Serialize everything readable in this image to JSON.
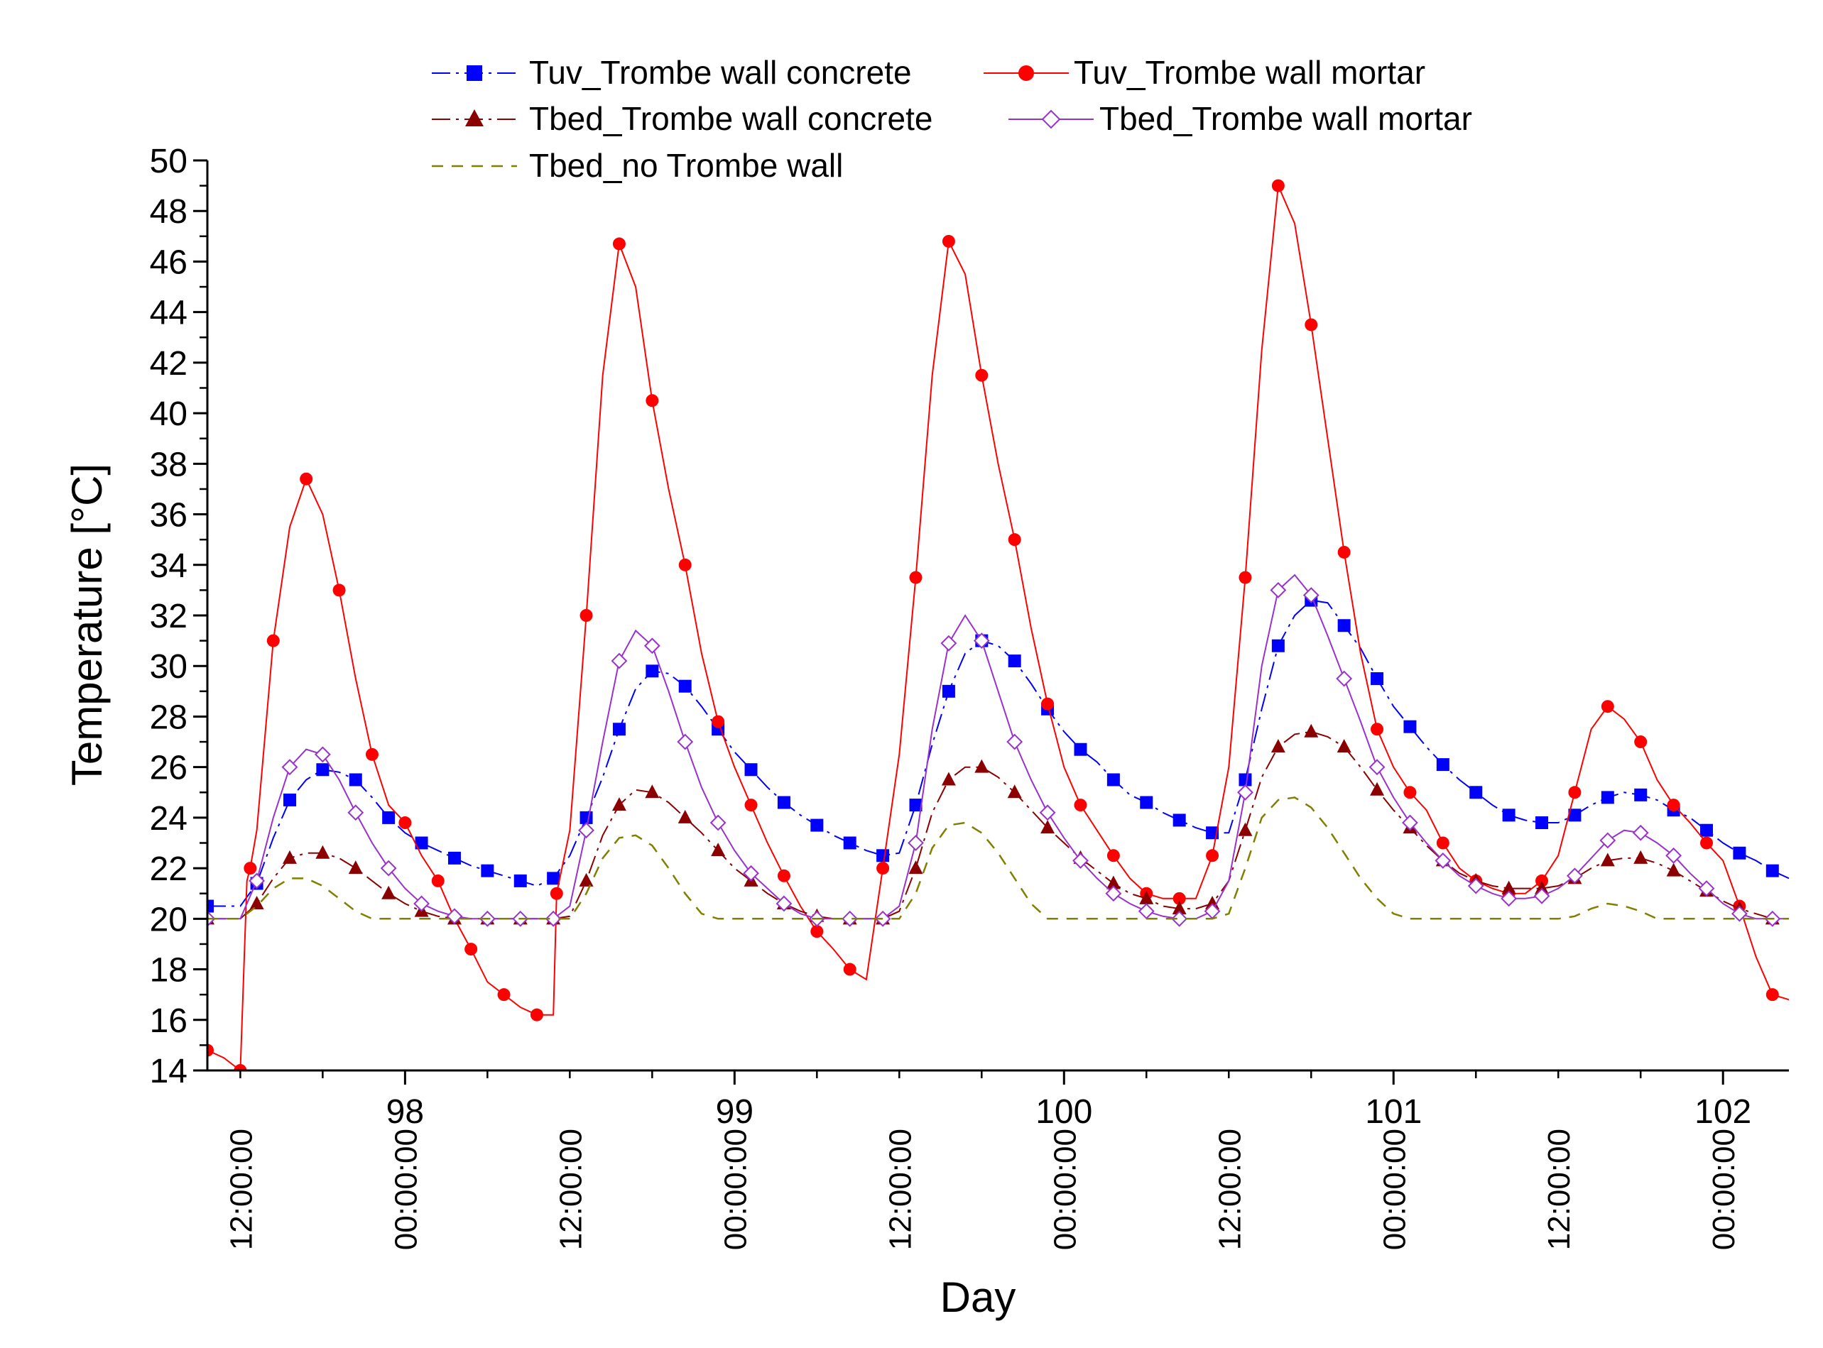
{
  "chart_data": {
    "type": "line",
    "title": "",
    "xlabel": "Day",
    "ylabel": "Temperature [°C]",
    "xlim": [
      97.4,
      102.2
    ],
    "ylim": [
      14,
      50
    ],
    "y_ticks": [
      14,
      16,
      18,
      20,
      22,
      24,
      26,
      28,
      30,
      32,
      34,
      36,
      38,
      40,
      42,
      44,
      46,
      48,
      50
    ],
    "x_day_ticks": [
      98,
      99,
      100,
      101,
      102
    ],
    "x_time_ticks": [
      {
        "x": 97.5,
        "label": "12:00:00"
      },
      {
        "x": 98.0,
        "label": "00:00:00"
      },
      {
        "x": 98.5,
        "label": "12:00:00"
      },
      {
        "x": 99.0,
        "label": "00:00:00"
      },
      {
        "x": 99.5,
        "label": "12:00:00"
      },
      {
        "x": 100.0,
        "label": "00:00:00"
      },
      {
        "x": 100.5,
        "label": "12:00:00"
      },
      {
        "x": 101.0,
        "label": "00:00:00"
      },
      {
        "x": 101.5,
        "label": "12:00:00"
      },
      {
        "x": 102.0,
        "label": "00:00:00"
      }
    ],
    "legend_position": "top",
    "series": [
      {
        "name": "Tuv_Trombe wall concrete",
        "color": "#0000ff",
        "line": "dash-dot",
        "marker": "square",
        "x": [
          97.4,
          97.5,
          97.55,
          97.6,
          97.65,
          97.7,
          97.75,
          97.8,
          97.85,
          97.9,
          97.95,
          98.0,
          98.05,
          98.1,
          98.15,
          98.2,
          98.25,
          98.3,
          98.35,
          98.4,
          98.45,
          98.5,
          98.55,
          98.6,
          98.65,
          98.7,
          98.75,
          98.8,
          98.85,
          98.9,
          98.95,
          99.0,
          99.05,
          99.1,
          99.15,
          99.2,
          99.25,
          99.3,
          99.35,
          99.4,
          99.45,
          99.5,
          99.55,
          99.6,
          99.65,
          99.7,
          99.75,
          99.8,
          99.85,
          99.9,
          99.95,
          100.0,
          100.05,
          100.1,
          100.15,
          100.2,
          100.25,
          100.3,
          100.35,
          100.4,
          100.45,
          100.5,
          100.55,
          100.6,
          100.65,
          100.7,
          100.75,
          100.8,
          100.85,
          100.9,
          100.95,
          101.0,
          101.05,
          101.1,
          101.15,
          101.2,
          101.25,
          101.3,
          101.35,
          101.4,
          101.45,
          101.5,
          101.55,
          101.6,
          101.65,
          101.7,
          101.75,
          101.8,
          101.85,
          101.9,
          101.95,
          102.0,
          102.05,
          102.1,
          102.15,
          102.2
        ],
        "y": [
          20.5,
          20.5,
          21.4,
          23.2,
          24.7,
          25.5,
          25.9,
          25.8,
          25.5,
          24.8,
          24.0,
          23.4,
          23.0,
          22.7,
          22.4,
          22.1,
          21.9,
          21.7,
          21.5,
          21.3,
          21.6,
          22.5,
          24.0,
          25.6,
          27.5,
          29.1,
          29.8,
          29.7,
          29.2,
          28.4,
          27.5,
          26.6,
          25.9,
          25.2,
          24.6,
          24.1,
          23.7,
          23.3,
          23.0,
          22.7,
          22.5,
          22.6,
          24.5,
          26.9,
          29.0,
          30.5,
          31.0,
          30.8,
          30.2,
          29.3,
          28.3,
          27.4,
          26.7,
          26.2,
          25.5,
          24.9,
          24.6,
          24.2,
          23.9,
          23.6,
          23.4,
          23.4,
          25.5,
          28.3,
          30.8,
          32.0,
          32.6,
          32.5,
          31.6,
          30.7,
          29.5,
          28.4,
          27.6,
          26.8,
          26.1,
          25.5,
          25.0,
          24.5,
          24.1,
          23.9,
          23.8,
          23.8,
          24.1,
          24.5,
          24.8,
          25.0,
          24.9,
          24.7,
          24.3,
          24.0,
          23.5,
          23.0,
          22.6,
          22.3,
          21.9,
          21.6
        ]
      },
      {
        "name": "Tuv_Trombe wall mortar",
        "color": "#ff0000",
        "line": "solid",
        "marker": "circle",
        "x": [
          97.4,
          97.45,
          97.5,
          97.52,
          97.53,
          97.55,
          97.6,
          97.65,
          97.7,
          97.75,
          97.8,
          97.85,
          97.9,
          97.95,
          98.0,
          98.05,
          98.1,
          98.15,
          98.2,
          98.25,
          98.3,
          98.35,
          98.4,
          98.45,
          98.46,
          98.5,
          98.55,
          98.6,
          98.65,
          98.7,
          98.75,
          98.8,
          98.85,
          98.9,
          98.95,
          99.0,
          99.05,
          99.1,
          99.15,
          99.2,
          99.25,
          99.3,
          99.35,
          99.4,
          99.45,
          99.5,
          99.55,
          99.6,
          99.65,
          99.7,
          99.75,
          99.8,
          99.85,
          99.9,
          99.95,
          100.0,
          100.05,
          100.1,
          100.15,
          100.2,
          100.25,
          100.3,
          100.35,
          100.4,
          100.45,
          100.5,
          100.55,
          100.6,
          100.65,
          100.7,
          100.75,
          100.8,
          100.85,
          100.9,
          100.95,
          101.0,
          101.05,
          101.1,
          101.15,
          101.2,
          101.25,
          101.3,
          101.35,
          101.4,
          101.45,
          101.5,
          101.55,
          101.6,
          101.65,
          101.7,
          101.75,
          101.8,
          101.85,
          101.9,
          101.95,
          102.0,
          102.05,
          102.1,
          102.15,
          102.2
        ],
        "y": [
          14.8,
          14.5,
          14.0,
          21.5,
          22.0,
          23.5,
          31.0,
          35.5,
          37.4,
          36.0,
          33.0,
          29.5,
          26.5,
          24.5,
          23.8,
          22.5,
          21.5,
          20.0,
          18.8,
          17.5,
          17.0,
          16.5,
          16.2,
          16.2,
          21.0,
          23.5,
          32.0,
          41.5,
          46.7,
          45.0,
          40.5,
          37.0,
          34.0,
          30.5,
          27.8,
          26.0,
          24.5,
          23.0,
          21.7,
          20.5,
          19.5,
          18.8,
          18.0,
          17.6,
          22.0,
          26.5,
          33.5,
          41.5,
          46.8,
          45.5,
          41.5,
          38.0,
          35.0,
          31.5,
          28.5,
          26.0,
          24.5,
          23.5,
          22.5,
          21.6,
          21.0,
          20.8,
          20.8,
          20.8,
          22.5,
          26.0,
          33.5,
          42.5,
          49.0,
          47.5,
          43.5,
          39.0,
          34.5,
          30.5,
          27.5,
          26.0,
          25.0,
          24.3,
          23.0,
          22.0,
          21.5,
          21.2,
          21.0,
          21.0,
          21.5,
          22.5,
          25.0,
          27.5,
          28.4,
          27.9,
          27.0,
          25.5,
          24.5,
          23.8,
          23.0,
          22.3,
          20.5,
          18.5,
          17.0,
          16.8
        ]
      },
      {
        "name": "Tbed_Trombe wall concrete",
        "color": "#8b0000",
        "line": "dash-dot",
        "marker": "triangle",
        "x": [
          97.4,
          97.5,
          97.55,
          97.6,
          97.65,
          97.7,
          97.75,
          97.8,
          97.85,
          97.9,
          97.95,
          98.0,
          98.05,
          98.1,
          98.15,
          98.2,
          98.25,
          98.3,
          98.35,
          98.4,
          98.45,
          98.5,
          98.55,
          98.6,
          98.65,
          98.7,
          98.75,
          98.8,
          98.85,
          98.9,
          98.95,
          99.0,
          99.05,
          99.1,
          99.15,
          99.2,
          99.25,
          99.3,
          99.35,
          99.4,
          99.45,
          99.5,
          99.55,
          99.6,
          99.65,
          99.7,
          99.75,
          99.8,
          99.85,
          99.9,
          99.95,
          100.0,
          100.05,
          100.1,
          100.15,
          100.2,
          100.25,
          100.3,
          100.35,
          100.4,
          100.45,
          100.5,
          100.55,
          100.6,
          100.65,
          100.7,
          100.75,
          100.8,
          100.85,
          100.9,
          100.95,
          101.0,
          101.05,
          101.1,
          101.15,
          101.2,
          101.25,
          101.3,
          101.35,
          101.4,
          101.45,
          101.5,
          101.55,
          101.6,
          101.65,
          101.7,
          101.75,
          101.8,
          101.85,
          101.9,
          101.95,
          102.0,
          102.05,
          102.1,
          102.15,
          102.2
        ],
        "y": [
          20.0,
          20.0,
          20.6,
          21.6,
          22.4,
          22.6,
          22.6,
          22.4,
          22.0,
          21.5,
          21.0,
          20.6,
          20.3,
          20.1,
          20.0,
          20.0,
          20.0,
          20.0,
          20.0,
          20.0,
          20.0,
          20.1,
          21.5,
          23.3,
          24.5,
          25.1,
          25.0,
          24.6,
          24.0,
          23.4,
          22.7,
          22.0,
          21.5,
          21.0,
          20.6,
          20.3,
          20.1,
          20.0,
          20.0,
          20.0,
          20.0,
          20.3,
          22.0,
          24.2,
          25.5,
          26.0,
          26.0,
          25.6,
          25.0,
          24.3,
          23.6,
          23.0,
          22.4,
          21.9,
          21.4,
          21.0,
          20.8,
          20.5,
          20.4,
          20.4,
          20.6,
          21.5,
          23.5,
          25.6,
          26.8,
          27.3,
          27.4,
          27.2,
          26.8,
          26.0,
          25.1,
          24.3,
          23.6,
          22.9,
          22.3,
          21.8,
          21.5,
          21.3,
          21.2,
          21.2,
          21.2,
          21.3,
          21.6,
          22.0,
          22.3,
          22.4,
          22.4,
          22.2,
          21.9,
          21.5,
          21.1,
          20.7,
          20.4,
          20.2,
          20.0,
          20.0
        ]
      },
      {
        "name": "Tbed_Trombe wall mortar",
        "color": "#9932cc",
        "line": "solid",
        "marker": "diamond-open",
        "x": [
          97.4,
          97.5,
          97.55,
          97.6,
          97.65,
          97.7,
          97.75,
          97.8,
          97.85,
          97.9,
          97.95,
          98.0,
          98.05,
          98.1,
          98.15,
          98.2,
          98.25,
          98.3,
          98.35,
          98.4,
          98.45,
          98.5,
          98.55,
          98.6,
          98.65,
          98.7,
          98.75,
          98.8,
          98.85,
          98.9,
          98.95,
          99.0,
          99.05,
          99.1,
          99.15,
          99.2,
          99.25,
          99.3,
          99.35,
          99.4,
          99.45,
          99.5,
          99.55,
          99.6,
          99.65,
          99.7,
          99.75,
          99.8,
          99.85,
          99.9,
          99.95,
          100.0,
          100.05,
          100.1,
          100.15,
          100.2,
          100.25,
          100.3,
          100.35,
          100.4,
          100.45,
          100.5,
          100.55,
          100.6,
          100.65,
          100.7,
          100.75,
          100.8,
          100.85,
          100.9,
          100.95,
          101.0,
          101.05,
          101.1,
          101.15,
          101.2,
          101.25,
          101.3,
          101.35,
          101.4,
          101.45,
          101.5,
          101.55,
          101.6,
          101.65,
          101.7,
          101.75,
          101.8,
          101.85,
          101.9,
          101.95,
          102.0,
          102.05,
          102.1,
          102.15,
          102.2
        ],
        "y": [
          20.0,
          20.0,
          21.5,
          24.0,
          26.0,
          26.7,
          26.5,
          25.5,
          24.2,
          23.0,
          22.0,
          21.2,
          20.6,
          20.3,
          20.1,
          20.0,
          20.0,
          20.0,
          20.0,
          20.0,
          20.0,
          20.5,
          23.5,
          27.0,
          30.2,
          31.4,
          30.8,
          29.0,
          27.0,
          25.2,
          23.8,
          22.7,
          21.8,
          21.2,
          20.6,
          20.2,
          20.0,
          20.0,
          20.0,
          20.0,
          20.0,
          20.5,
          23.0,
          27.5,
          30.9,
          32.0,
          31.0,
          29.0,
          27.0,
          25.5,
          24.2,
          23.2,
          22.3,
          21.6,
          21.0,
          20.6,
          20.3,
          20.1,
          20.0,
          20.0,
          20.3,
          21.5,
          25.0,
          30.0,
          33.0,
          33.6,
          32.8,
          31.2,
          29.5,
          27.8,
          26.0,
          24.8,
          23.8,
          23.0,
          22.3,
          21.7,
          21.3,
          21.0,
          20.8,
          20.8,
          20.9,
          21.2,
          21.7,
          22.4,
          23.1,
          23.5,
          23.4,
          23.0,
          22.5,
          21.8,
          21.2,
          20.6,
          20.2,
          20.0,
          20.0,
          20.0
        ]
      },
      {
        "name": "Tbed_no Trombe wall",
        "color": "#808000",
        "line": "dashed",
        "marker": "none",
        "x": [
          97.4,
          97.5,
          97.55,
          97.6,
          97.65,
          97.7,
          97.75,
          97.8,
          97.85,
          97.9,
          97.95,
          98.0,
          98.05,
          98.1,
          98.15,
          98.2,
          98.25,
          98.3,
          98.35,
          98.4,
          98.45,
          98.5,
          98.55,
          98.6,
          98.65,
          98.7,
          98.75,
          98.8,
          98.85,
          98.9,
          98.95,
          99.0,
          99.05,
          99.1,
          99.15,
          99.2,
          99.25,
          99.3,
          99.35,
          99.4,
          99.45,
          99.5,
          99.55,
          99.6,
          99.65,
          99.7,
          99.75,
          99.8,
          99.85,
          99.9,
          99.95,
          100.0,
          100.05,
          100.1,
          100.15,
          100.2,
          100.25,
          100.3,
          100.35,
          100.4,
          100.45,
          100.5,
          100.55,
          100.6,
          100.65,
          100.7,
          100.75,
          100.8,
          100.85,
          100.9,
          100.95,
          101.0,
          101.05,
          101.1,
          101.15,
          101.2,
          101.25,
          101.3,
          101.35,
          101.4,
          101.45,
          101.5,
          101.55,
          101.6,
          101.65,
          101.7,
          101.75,
          101.8,
          101.85,
          101.9,
          101.95,
          102.0,
          102.05,
          102.1,
          102.15,
          102.2
        ],
        "y": [
          20.0,
          20.0,
          20.5,
          21.2,
          21.6,
          21.6,
          21.3,
          20.8,
          20.3,
          20.0,
          20.0,
          20.0,
          20.0,
          20.0,
          20.0,
          20.0,
          20.0,
          20.0,
          20.0,
          20.0,
          20.0,
          20.0,
          21.0,
          22.4,
          23.2,
          23.3,
          22.9,
          22.0,
          21.0,
          20.2,
          20.0,
          20.0,
          20.0,
          20.0,
          20.0,
          20.0,
          20.0,
          20.0,
          20.0,
          20.0,
          20.0,
          20.0,
          21.0,
          22.8,
          23.7,
          23.8,
          23.4,
          22.6,
          21.6,
          20.6,
          20.0,
          20.0,
          20.0,
          20.0,
          20.0,
          20.0,
          20.0,
          20.0,
          20.0,
          20.0,
          20.0,
          20.2,
          22.0,
          24.0,
          24.7,
          24.8,
          24.4,
          23.6,
          22.6,
          21.6,
          20.8,
          20.2,
          20.0,
          20.0,
          20.0,
          20.0,
          20.0,
          20.0,
          20.0,
          20.0,
          20.0,
          20.0,
          20.1,
          20.4,
          20.6,
          20.5,
          20.3,
          20.0,
          20.0,
          20.0,
          20.0,
          20.0,
          20.0,
          20.0,
          20.0,
          20.0
        ]
      }
    ]
  }
}
